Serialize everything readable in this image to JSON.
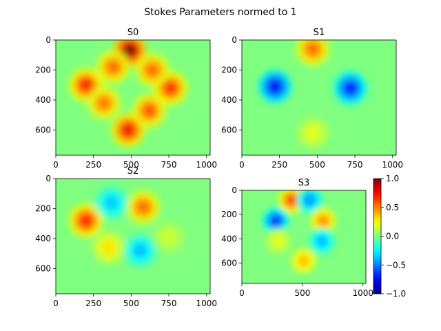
{
  "figure_title": "Stokes Parameters normed to 1",
  "chart_data": [
    {
      "type": "heatmap",
      "title": "S0",
      "xlim": [
        0,
        1024
      ],
      "ylim": [
        768,
        0
      ],
      "x_ticks": [
        "0",
        "250",
        "500",
        "750",
        "1000"
      ],
      "y_ticks": [
        "0",
        "200",
        "400",
        "600"
      ],
      "background_value": 0.0,
      "blobs": [
        {
          "x": 490,
          "y": 70,
          "value": 1.0
        },
        {
          "x": 200,
          "y": 300,
          "value": 0.72
        },
        {
          "x": 760,
          "y": 320,
          "value": 0.68
        },
        {
          "x": 480,
          "y": 600,
          "value": 0.78
        },
        {
          "x": 380,
          "y": 180,
          "value": 0.55
        },
        {
          "x": 640,
          "y": 200,
          "value": 0.55
        },
        {
          "x": 320,
          "y": 420,
          "value": 0.52
        },
        {
          "x": 620,
          "y": 470,
          "value": 0.6
        }
      ]
    },
    {
      "type": "heatmap",
      "title": "S1",
      "xlim": [
        0,
        1024
      ],
      "ylim": [
        768,
        0
      ],
      "x_ticks": [
        "0",
        "250",
        "500",
        "750",
        "1000"
      ],
      "y_ticks": [
        "0",
        "200",
        "400",
        "600"
      ],
      "background_value": 0.0,
      "blobs": [
        {
          "x": 220,
          "y": 310,
          "value": -0.78
        },
        {
          "x": 720,
          "y": 320,
          "value": -0.72
        },
        {
          "x": 470,
          "y": 60,
          "value": 0.55
        },
        {
          "x": 470,
          "y": 620,
          "value": 0.2
        }
      ]
    },
    {
      "type": "heatmap",
      "title": "S2",
      "xlim": [
        0,
        1024
      ],
      "ylim": [
        768,
        0
      ],
      "x_ticks": [
        "0",
        "250",
        "500",
        "750",
        "1000"
      ],
      "y_ticks": [
        "0",
        "200",
        "400",
        "600"
      ],
      "background_value": 0.0,
      "blobs": [
        {
          "x": 200,
          "y": 280,
          "value": 0.72
        },
        {
          "x": 580,
          "y": 190,
          "value": 0.55
        },
        {
          "x": 370,
          "y": 160,
          "value": -0.35
        },
        {
          "x": 560,
          "y": 480,
          "value": -0.38
        },
        {
          "x": 350,
          "y": 460,
          "value": 0.3
        },
        {
          "x": 750,
          "y": 390,
          "value": 0.15
        }
      ]
    },
    {
      "type": "heatmap",
      "title": "S3",
      "xlim": [
        0,
        1024
      ],
      "ylim": [
        768,
        0
      ],
      "x_ticks": [
        "0",
        "500",
        "1000"
      ],
      "y_ticks": [
        "0",
        "200",
        "400",
        "600"
      ],
      "background_value": 0.0,
      "blobs": [
        {
          "x": 410,
          "y": 80,
          "value": 0.6
        },
        {
          "x": 560,
          "y": 80,
          "value": -0.45
        },
        {
          "x": 280,
          "y": 250,
          "value": -0.62
        },
        {
          "x": 670,
          "y": 250,
          "value": 0.45
        },
        {
          "x": 660,
          "y": 420,
          "value": -0.38
        },
        {
          "x": 510,
          "y": 580,
          "value": 0.38
        },
        {
          "x": 300,
          "y": 420,
          "value": 0.2
        }
      ]
    }
  ],
  "colorbar": {
    "colormap": "jet",
    "range": [
      -1.0,
      1.0
    ],
    "ticks": [
      "1.0",
      "0.5",
      "0.0",
      "−0.5",
      "−1.0"
    ]
  }
}
